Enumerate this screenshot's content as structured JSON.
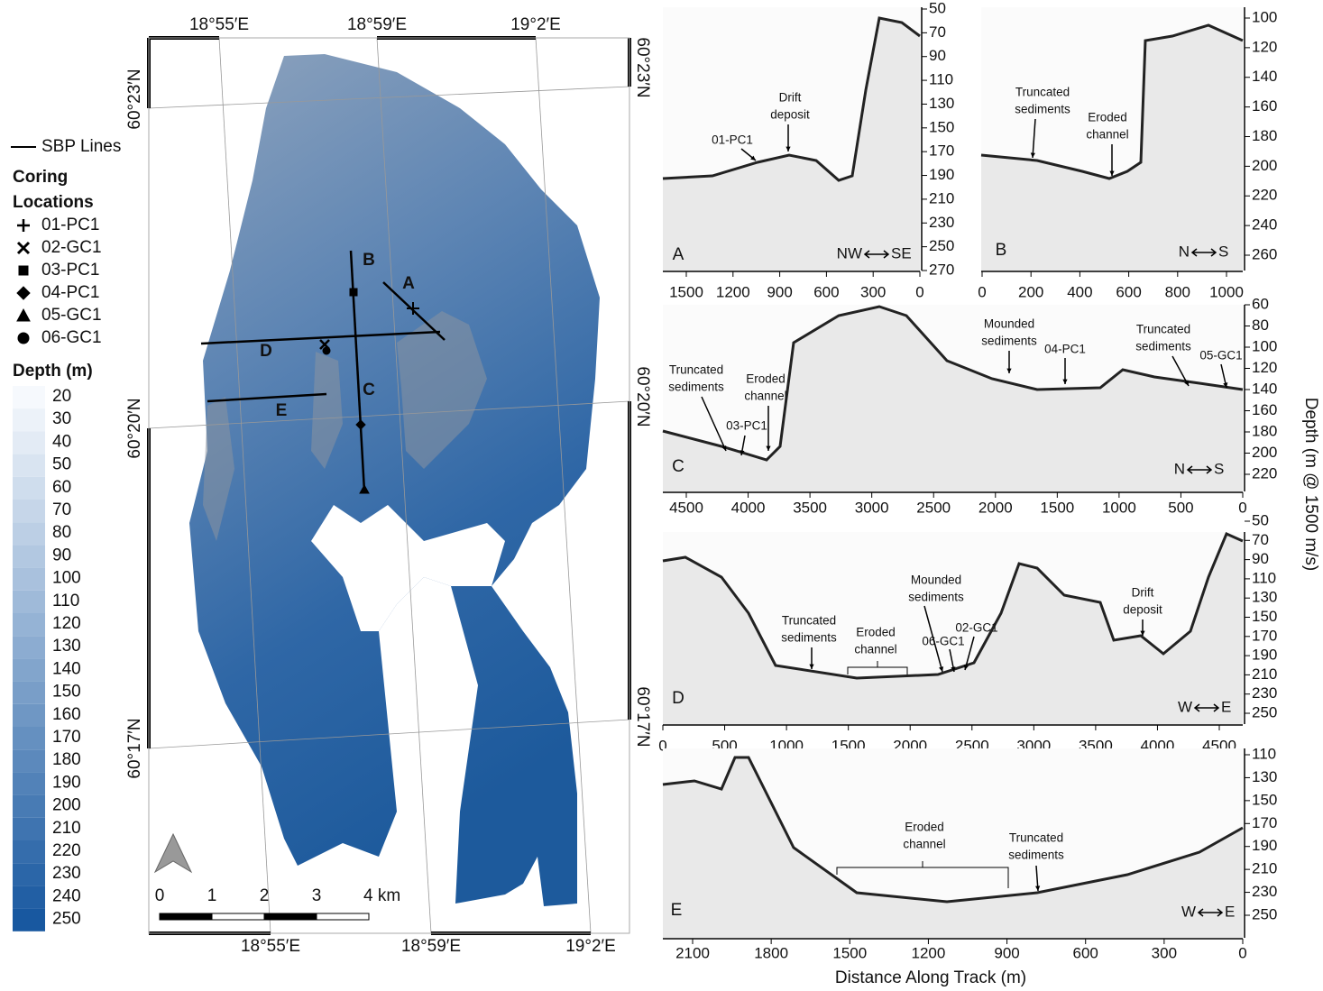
{
  "map": {
    "lon_labels_top": [
      "18°55′E",
      "18°59′E",
      "19°2′E"
    ],
    "lon_labels_bottom": [
      "18°55′E",
      "18°59′E",
      "19°2′E"
    ],
    "lat_labels_left": [
      "60°23′N",
      "60°20′N",
      "60°17′N"
    ],
    "lat_labels_right": [
      "60°23′N",
      "60°20′N",
      "60°17′N"
    ],
    "line_labels": [
      "A",
      "B",
      "C",
      "D",
      "E"
    ],
    "scale_labels": [
      "0",
      "1",
      "2",
      "3",
      "4 km"
    ]
  },
  "legend": {
    "sbp": "SBP Lines",
    "coring_title": [
      "Coring",
      "Locations"
    ],
    "cores": [
      "01-PC1",
      "02-GC1",
      "03-PC1",
      "04-PC1",
      "05-GC1",
      "06-GC1"
    ],
    "depth_title": "Depth (m)",
    "depth_values": [
      20,
      30,
      40,
      50,
      60,
      70,
      80,
      90,
      100,
      110,
      120,
      130,
      140,
      150,
      160,
      170,
      180,
      190,
      200,
      210,
      220,
      230,
      240,
      250
    ]
  },
  "profiles": [
    {
      "label": "A",
      "direction": [
        "NW",
        "SE"
      ],
      "yticks": [
        50,
        70,
        90,
        110,
        130,
        150,
        170,
        190,
        210,
        230,
        250,
        270
      ],
      "xticks": [
        1500,
        1200,
        900,
        600,
        300,
        0
      ],
      "annotations": [
        [
          "01-PC1"
        ],
        [
          "Drift",
          "deposit"
        ]
      ]
    },
    {
      "label": "B",
      "direction": [
        "N",
        "S"
      ],
      "yticks": [
        100,
        120,
        140,
        160,
        180,
        200,
        220,
        240,
        260
      ],
      "xticks": [
        0,
        200,
        400,
        600,
        800,
        1000
      ],
      "annotations": [
        [
          "Truncated",
          "sediments"
        ],
        [
          "Eroded",
          "channel"
        ]
      ]
    },
    {
      "label": "C",
      "direction": [
        "N",
        "S"
      ],
      "yticks": [
        60,
        80,
        100,
        120,
        140,
        160,
        180,
        200,
        220
      ],
      "xticks": [
        4500,
        4000,
        3500,
        3000,
        2500,
        2000,
        1500,
        1000,
        500,
        0
      ],
      "annotations": [
        [
          "Truncated",
          "sediments"
        ],
        [
          "Eroded",
          "channel"
        ],
        [
          "03-PC1"
        ],
        [
          "Mounded",
          "sediments"
        ],
        [
          "04-PC1"
        ],
        [
          "Truncated",
          "sediments"
        ],
        [
          "05-GC1"
        ]
      ]
    },
    {
      "label": "D",
      "direction": [
        "W",
        "E"
      ],
      "yticks": [
        50,
        70,
        90,
        110,
        130,
        150,
        170,
        190,
        210,
        230,
        250
      ],
      "xticks": [
        0,
        500,
        1000,
        1500,
        2000,
        2500,
        3000,
        3500,
        4000,
        4500
      ],
      "annotations": [
        [
          "Truncated",
          "sediments"
        ],
        [
          "Eroded",
          "channel"
        ],
        [
          "Mounded",
          "sediments"
        ],
        [
          "06-GC1"
        ],
        [
          "02-GC1"
        ],
        [
          "Drift",
          "deposit"
        ]
      ]
    },
    {
      "label": "E",
      "direction": [
        "W",
        "E"
      ],
      "yticks": [
        110,
        130,
        150,
        170,
        190,
        210,
        230,
        250
      ],
      "xticks": [
        2100,
        1800,
        1500,
        1200,
        900,
        600,
        300,
        0
      ],
      "annotations": [
        [
          "Eroded",
          "channel"
        ],
        [
          "Truncated",
          "sediments"
        ]
      ]
    }
  ],
  "y_axis_title": "Depth (m @ 1500 m/s)",
  "x_axis_title": "Distance Along Track (m)"
}
